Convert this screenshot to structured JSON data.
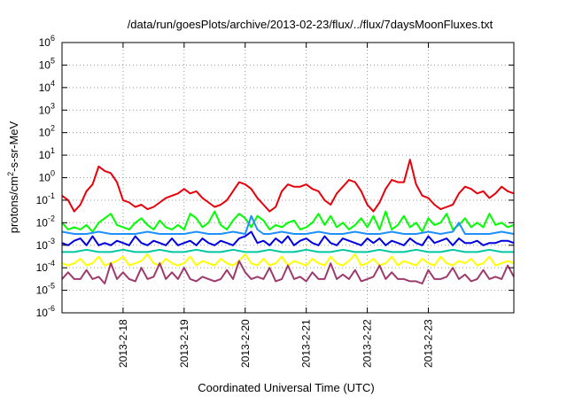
{
  "chart_data": {
    "type": "line",
    "title": "/data/run/goesPlots/archive/2013-02-23/flux/../flux/7daysMoonFluxes.txt",
    "xlabel": "Coordinated Universal Time (UTC)",
    "ylabel_parts": {
      "base": "protons/cm",
      "exp": "2",
      "rest": "-s-sr-MeV"
    },
    "y_scale": "log",
    "ylim": [
      1e-06,
      1000000.0
    ],
    "xlim": [
      0,
      7.4
    ],
    "y_ticks": [
      {
        "base": "10",
        "exp": "-6",
        "value": -6
      },
      {
        "base": "10",
        "exp": "-5",
        "value": -5
      },
      {
        "base": "10",
        "exp": "-4",
        "value": -4
      },
      {
        "base": "10",
        "exp": "-3",
        "value": -3
      },
      {
        "base": "10",
        "exp": "-2",
        "value": -2
      },
      {
        "base": "10",
        "exp": "-1",
        "value": -1
      },
      {
        "base": "10",
        "exp": "0",
        "value": 0
      },
      {
        "base": "10",
        "exp": "1",
        "value": 1
      },
      {
        "base": "10",
        "exp": "2",
        "value": 2
      },
      {
        "base": "10",
        "exp": "3",
        "value": 3
      },
      {
        "base": "10",
        "exp": "4",
        "value": 4
      },
      {
        "base": "10",
        "exp": "5",
        "value": 5
      },
      {
        "base": "10",
        "exp": "6",
        "value": 6
      }
    ],
    "x_ticks": [
      {
        "label": "2013-2-18",
        "value": 1
      },
      {
        "label": "2013-2-19",
        "value": 2
      },
      {
        "label": "2013-2-20",
        "value": 3
      },
      {
        "label": "2013-2-21",
        "value": 4
      },
      {
        "label": "2013-2-22",
        "value": 5
      },
      {
        "label": "2013-2-23",
        "value": 6
      }
    ],
    "grid": true,
    "series": [
      {
        "color": "#e8000b",
        "x": [
          0,
          0.1,
          0.2,
          0.3,
          0.4,
          0.5,
          0.6,
          0.7,
          0.8,
          0.9,
          1.0,
          1.1,
          1.2,
          1.3,
          1.4,
          1.5,
          1.6,
          1.7,
          1.8,
          1.9,
          2.0,
          2.1,
          2.2,
          2.3,
          2.4,
          2.5,
          2.6,
          2.7,
          2.8,
          2.9,
          3.0,
          3.1,
          3.2,
          3.3,
          3.4,
          3.5,
          3.6,
          3.7,
          3.8,
          3.9,
          4.0,
          4.1,
          4.2,
          4.3,
          4.4,
          4.5,
          4.6,
          4.7,
          4.8,
          4.9,
          5.0,
          5.1,
          5.2,
          5.3,
          5.4,
          5.5,
          5.6,
          5.7,
          5.8,
          5.9,
          6.0,
          6.1,
          6.2,
          6.3,
          6.4,
          6.5,
          6.6,
          6.7,
          6.8,
          6.9,
          7.0,
          7.1,
          7.2,
          7.3,
          7.4
        ],
        "y": [
          -0.8,
          -1.0,
          -1.5,
          -1.2,
          -0.6,
          -0.3,
          0.5,
          0.3,
          0.2,
          -0.2,
          -1.0,
          -1.1,
          -1.3,
          -1.2,
          -1.4,
          -1.3,
          -1.1,
          -0.9,
          -0.8,
          -0.7,
          -0.5,
          -0.7,
          -0.6,
          -0.9,
          -1.1,
          -1.3,
          -1.2,
          -1.0,
          -0.6,
          -0.2,
          -0.3,
          -0.5,
          -0.9,
          -1.2,
          -1.5,
          -1.3,
          -0.6,
          -0.3,
          -0.4,
          -0.4,
          -0.3,
          -0.5,
          -0.6,
          -1.0,
          -1.2,
          -0.7,
          -0.4,
          -0.1,
          -0.2,
          -0.6,
          -1.2,
          -1.5,
          -1.1,
          -0.5,
          -0.1,
          -0.2,
          -0.2,
          0.8,
          -0.3,
          -0.8,
          -0.9,
          -1.2,
          -1.4,
          -1.3,
          -1.2,
          -0.7,
          -0.4,
          -0.5,
          -0.7,
          -0.6,
          -0.9,
          -0.7,
          -0.4,
          -0.6,
          -0.7
        ]
      },
      {
        "color": "#00ff00",
        "x": [
          0,
          0.1,
          0.2,
          0.3,
          0.4,
          0.5,
          0.6,
          0.7,
          0.8,
          0.9,
          1.0,
          1.1,
          1.2,
          1.3,
          1.4,
          1.5,
          1.6,
          1.7,
          1.8,
          1.9,
          2.0,
          2.1,
          2.2,
          2.3,
          2.4,
          2.5,
          2.6,
          2.7,
          2.8,
          2.9,
          3.0,
          3.1,
          3.2,
          3.3,
          3.4,
          3.5,
          3.6,
          3.7,
          3.8,
          3.9,
          4.0,
          4.1,
          4.2,
          4.3,
          4.4,
          4.5,
          4.6,
          4.7,
          4.8,
          4.9,
          5.0,
          5.1,
          5.2,
          5.3,
          5.4,
          5.5,
          5.6,
          5.7,
          5.8,
          5.9,
          6.0,
          6.1,
          6.2,
          6.3,
          6.4,
          6.5,
          6.6,
          6.7,
          6.8,
          6.9,
          7.0,
          7.1,
          7.2,
          7.3,
          7.4
        ],
        "y": [
          -2.0,
          -2.3,
          -2.2,
          -2.3,
          -2.1,
          -2.4,
          -2.0,
          -1.8,
          -1.6,
          -2.1,
          -2.2,
          -2.3,
          -2.0,
          -1.8,
          -2.1,
          -2.3,
          -1.9,
          -2.2,
          -2.3,
          -2.1,
          -2.3,
          -1.6,
          -1.8,
          -2.2,
          -2.0,
          -1.5,
          -2.1,
          -2.3,
          -1.9,
          -1.6,
          -1.8,
          -2.2,
          -1.7,
          -1.9,
          -2.3,
          -2.1,
          -2.2,
          -2.0,
          -1.9,
          -2.3,
          -2.2,
          -2.0,
          -1.6,
          -2.1,
          -1.7,
          -2.2,
          -2.0,
          -2.3,
          -2.1,
          -1.8,
          -2.2,
          -1.7,
          -2.3,
          -1.5,
          -2.3,
          -2.1,
          -1.7,
          -2.2,
          -2.0,
          -2.4,
          -1.8,
          -2.1,
          -2.0,
          -1.6,
          -2.3,
          -2.1,
          -1.8,
          -2.2,
          -2.0,
          -2.2,
          -1.6,
          -2.1,
          -2.0,
          -2.2,
          -2.1
        ]
      },
      {
        "color": "#0000e0",
        "x": [
          0,
          0.1,
          0.2,
          0.3,
          0.4,
          0.5,
          0.6,
          0.7,
          0.8,
          0.9,
          1.0,
          1.1,
          1.2,
          1.3,
          1.4,
          1.5,
          1.6,
          1.7,
          1.8,
          1.9,
          2.0,
          2.1,
          2.2,
          2.3,
          2.4,
          2.5,
          2.6,
          2.7,
          2.8,
          2.9,
          3.0,
          3.1,
          3.2,
          3.3,
          3.4,
          3.5,
          3.6,
          3.7,
          3.8,
          3.9,
          4.0,
          4.1,
          4.2,
          4.3,
          4.4,
          4.5,
          4.6,
          4.7,
          4.8,
          4.9,
          5.0,
          5.1,
          5.2,
          5.3,
          5.4,
          5.5,
          5.6,
          5.7,
          5.8,
          5.9,
          6.0,
          6.1,
          6.2,
          6.3,
          6.4,
          6.5,
          6.6,
          6.7,
          6.8,
          6.9,
          7.0,
          7.1,
          7.2,
          7.3,
          7.4
        ],
        "y": [
          -2.9,
          -3.0,
          -2.8,
          -2.7,
          -3.0,
          -2.6,
          -3.0,
          -2.9,
          -3.0,
          -2.8,
          -2.9,
          -3.0,
          -2.6,
          -2.9,
          -3.0,
          -2.8,
          -2.9,
          -3.0,
          -2.7,
          -3.0,
          -2.9,
          -2.8,
          -3.0,
          -2.7,
          -2.9,
          -3.0,
          -2.8,
          -2.9,
          -3.0,
          -2.7,
          -2.6,
          -2.4,
          -2.9,
          -2.8,
          -3.0,
          -2.7,
          -2.9,
          -2.6,
          -3.0,
          -2.8,
          -2.7,
          -2.9,
          -3.0,
          -2.6,
          -2.9,
          -3.0,
          -2.7,
          -2.8,
          -2.9,
          -3.0,
          -2.7,
          -2.9,
          -2.7,
          -3.0,
          -2.8,
          -2.9,
          -3.0,
          -2.7,
          -2.9,
          -3.0,
          -2.6,
          -2.9,
          -2.8,
          -2.7,
          -3.0,
          -2.7,
          -2.9,
          -2.9,
          -2.8,
          -3.0,
          -2.9,
          -2.9,
          -2.8,
          -2.8,
          -2.9
        ]
      },
      {
        "color": "#1e90ff",
        "x": [
          0,
          0.2,
          0.4,
          0.6,
          0.8,
          1.0,
          1.2,
          1.4,
          1.6,
          1.8,
          2.0,
          2.2,
          2.4,
          2.6,
          2.8,
          3.0,
          3.1,
          3.2,
          3.3,
          3.4,
          3.6,
          3.8,
          4.0,
          4.2,
          4.4,
          4.6,
          4.8,
          5.0,
          5.2,
          5.4,
          5.6,
          5.8,
          6.0,
          6.2,
          6.4,
          6.5,
          6.6,
          6.8,
          7.0,
          7.2,
          7.4
        ],
        "y": [
          -2.4,
          -2.5,
          -2.5,
          -2.4,
          -2.5,
          -2.5,
          -2.5,
          -2.4,
          -2.5,
          -2.5,
          -2.5,
          -2.4,
          -2.5,
          -2.5,
          -2.4,
          -2.5,
          -1.7,
          -2.3,
          -2.5,
          -2.5,
          -2.4,
          -2.5,
          -2.5,
          -2.4,
          -2.5,
          -2.5,
          -2.4,
          -2.5,
          -2.5,
          -2.4,
          -2.5,
          -2.5,
          -2.4,
          -2.5,
          -2.4,
          -2.0,
          -2.5,
          -2.5,
          -2.5,
          -2.4,
          -2.5
        ]
      },
      {
        "color": "#00c8a0",
        "x": [
          0,
          0.2,
          0.4,
          0.6,
          0.8,
          1.0,
          1.2,
          1.4,
          1.6,
          1.8,
          2.0,
          2.2,
          2.4,
          2.6,
          2.8,
          3.0,
          3.2,
          3.4,
          3.6,
          3.8,
          4.0,
          4.2,
          4.4,
          4.6,
          4.8,
          5.0,
          5.2,
          5.4,
          5.6,
          5.8,
          6.0,
          6.2,
          6.4,
          6.6,
          6.8,
          7.0,
          7.2,
          7.4
        ],
        "y": [
          -3.3,
          -3.3,
          -3.2,
          -3.3,
          -3.3,
          -3.2,
          -3.3,
          -3.3,
          -3.2,
          -3.3,
          -3.3,
          -3.2,
          -3.3,
          -3.3,
          -3.2,
          -3.3,
          -3.3,
          -3.2,
          -3.3,
          -3.3,
          -3.2,
          -3.3,
          -3.3,
          -3.2,
          -3.3,
          -3.3,
          -3.2,
          -3.3,
          -3.3,
          -3.2,
          -3.3,
          -3.3,
          -3.2,
          -3.3,
          -3.3,
          -3.2,
          -3.3,
          -3.3
        ]
      },
      {
        "color": "#ffff00",
        "x": [
          0,
          0.1,
          0.2,
          0.3,
          0.4,
          0.5,
          0.6,
          0.7,
          0.8,
          0.9,
          1.0,
          1.1,
          1.2,
          1.3,
          1.4,
          1.5,
          1.6,
          1.7,
          1.8,
          1.9,
          2.0,
          2.1,
          2.2,
          2.3,
          2.4,
          2.5,
          2.6,
          2.7,
          2.8,
          2.9,
          3.0,
          3.1,
          3.2,
          3.3,
          3.4,
          3.5,
          3.6,
          3.7,
          3.8,
          3.9,
          4.0,
          4.1,
          4.2,
          4.3,
          4.4,
          4.5,
          4.6,
          4.7,
          4.8,
          4.9,
          5.0,
          5.1,
          5.2,
          5.3,
          5.4,
          5.5,
          5.6,
          5.7,
          5.8,
          5.9,
          6.0,
          6.1,
          6.2,
          6.3,
          6.4,
          6.5,
          6.6,
          6.7,
          6.8,
          6.9,
          7.0,
          7.1,
          7.2,
          7.3,
          7.4
        ],
        "y": [
          -3.8,
          -3.9,
          -3.8,
          -3.6,
          -3.9,
          -3.8,
          -3.5,
          -3.9,
          -3.8,
          -3.7,
          -3.5,
          -3.9,
          -3.8,
          -3.7,
          -3.4,
          -3.8,
          -3.9,
          -3.6,
          -3.8,
          -3.9,
          -3.8,
          -3.5,
          -3.9,
          -3.7,
          -3.8,
          -3.9,
          -3.6,
          -3.8,
          -3.9,
          -3.7,
          -3.4,
          -3.8,
          -3.9,
          -3.6,
          -3.9,
          -3.8,
          -3.5,
          -3.9,
          -3.7,
          -3.8,
          -3.9,
          -3.6,
          -3.8,
          -3.9,
          -3.5,
          -3.8,
          -3.9,
          -3.7,
          -3.4,
          -3.9,
          -3.8,
          -3.6,
          -3.9,
          -3.8,
          -3.5,
          -3.9,
          -3.7,
          -3.8,
          -3.9,
          -3.6,
          -3.8,
          -3.9,
          -3.5,
          -3.8,
          -3.9,
          -3.7,
          -3.8,
          -3.6,
          -3.9,
          -3.8,
          -3.5,
          -3.9,
          -3.8,
          -3.7,
          -3.8
        ]
      },
      {
        "color": "#9e3a6e",
        "x": [
          0,
          0.1,
          0.2,
          0.3,
          0.4,
          0.5,
          0.6,
          0.7,
          0.8,
          0.9,
          1.0,
          1.1,
          1.2,
          1.3,
          1.4,
          1.5,
          1.6,
          1.7,
          1.8,
          1.9,
          2.0,
          2.1,
          2.2,
          2.3,
          2.4,
          2.5,
          2.6,
          2.7,
          2.8,
          2.9,
          3.0,
          3.1,
          3.2,
          3.3,
          3.4,
          3.5,
          3.6,
          3.7,
          3.8,
          3.9,
          4.0,
          4.1,
          4.2,
          4.3,
          4.4,
          4.5,
          4.6,
          4.7,
          4.8,
          4.9,
          5.0,
          5.1,
          5.2,
          5.3,
          5.4,
          5.5,
          5.6,
          5.7,
          5.8,
          5.9,
          6.0,
          6.1,
          6.2,
          6.3,
          6.4,
          6.5,
          6.6,
          6.7,
          6.8,
          6.9,
          7.0,
          7.1,
          7.2,
          7.3,
          7.4
        ],
        "y": [
          -4.5,
          -4.2,
          -4.5,
          -4.5,
          -4.1,
          -4.5,
          -4.4,
          -4.7,
          -3.8,
          -4.5,
          -4.2,
          -4.5,
          -4.6,
          -4.0,
          -4.5,
          -4.4,
          -3.8,
          -4.5,
          -4.2,
          -4.5,
          -4.0,
          -4.5,
          -4.6,
          -4.4,
          -4.5,
          -4.6,
          -4.5,
          -4.1,
          -4.5,
          -3.7,
          -4.2,
          -4.5,
          -4.4,
          -4.5,
          -4.0,
          -4.6,
          -4.5,
          -3.9,
          -4.5,
          -4.4,
          -4.6,
          -4.2,
          -4.5,
          -4.5,
          -3.8,
          -4.5,
          -4.3,
          -4.5,
          -4.1,
          -4.6,
          -4.5,
          -4.4,
          -3.9,
          -4.5,
          -4.2,
          -4.5,
          -4.5,
          -4.6,
          -4.6,
          -4.7,
          -4.1,
          -4.5,
          -4.5,
          -4.4,
          -4.0,
          -4.5,
          -4.3,
          -4.6,
          -4.5,
          -4.1,
          -4.5,
          -4.4,
          -4.5,
          -3.9,
          -4.4
        ]
      }
    ]
  }
}
